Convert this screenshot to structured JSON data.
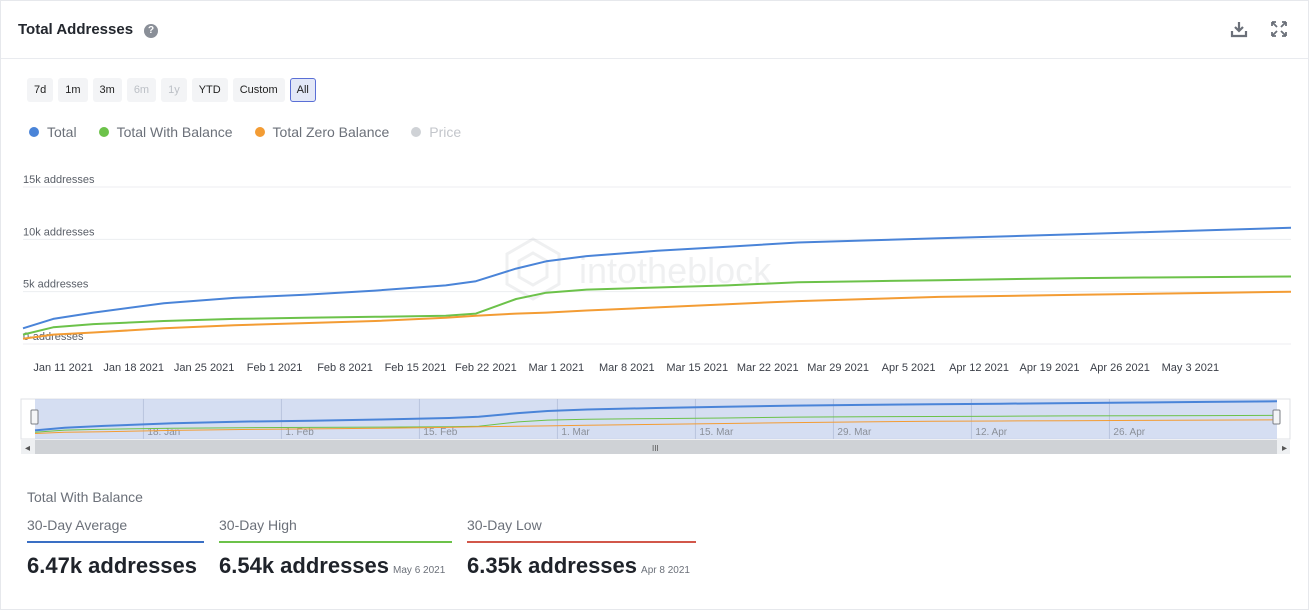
{
  "header": {
    "title": "Total Addresses",
    "help_glyph": "?",
    "download_icon": "download-icon",
    "expand_icon": "expand-icon"
  },
  "range_buttons": [
    {
      "label": "7d",
      "state": "normal"
    },
    {
      "label": "1m",
      "state": "normal"
    },
    {
      "label": "3m",
      "state": "normal"
    },
    {
      "label": "6m",
      "state": "disabled"
    },
    {
      "label": "1y",
      "state": "disabled"
    },
    {
      "label": "YTD",
      "state": "normal"
    },
    {
      "label": "Custom",
      "state": "normal"
    },
    {
      "label": "All",
      "state": "active"
    }
  ],
  "legend": [
    {
      "name": "Total",
      "color": "#4a84d8",
      "visible": true
    },
    {
      "name": "Total With Balance",
      "color": "#6cc24a",
      "visible": true
    },
    {
      "name": "Total Zero Balance",
      "color": "#f39c34",
      "visible": true
    },
    {
      "name": "Price",
      "color": "#cfd2d6",
      "visible": false
    }
  ],
  "chart_data": {
    "type": "line",
    "title": "Total Addresses",
    "x_tick_labels": [
      "Jan 11 2021",
      "Jan 18 2021",
      "Jan 25 2021",
      "Feb 1 2021",
      "Feb 8 2021",
      "Feb 15 2021",
      "Feb 22 2021",
      "Mar 1 2021",
      "Mar 8 2021",
      "Mar 15 2021",
      "Mar 22 2021",
      "Mar 29 2021",
      "Apr 5 2021",
      "Apr 12 2021",
      "Apr 19 2021",
      "Apr 26 2021",
      "May 3 2021"
    ],
    "y_tick_labels": [
      "0-addresses",
      "5k addresses",
      "10k addresses",
      "15k addresses"
    ],
    "ylim": [
      0,
      15000
    ],
    "x_range_days": [
      0,
      126
    ],
    "grid": true,
    "legend_placement": "top-left",
    "watermark": "intotheblock",
    "series": [
      {
        "name": "Total",
        "color": "#4a84d8",
        "x_days": [
          0,
          3,
          7,
          14,
          21,
          28,
          35,
          42,
          45,
          49,
          52,
          56,
          63,
          70,
          77,
          84,
          91,
          98,
          105,
          112,
          119,
          126
        ],
        "values": [
          1500,
          2400,
          3000,
          3900,
          4400,
          4700,
          5100,
          5600,
          6000,
          7200,
          7900,
          8400,
          8900,
          9300,
          9700,
          9900,
          10100,
          10300,
          10500,
          10700,
          10900,
          11100
        ]
      },
      {
        "name": "Total With Balance",
        "color": "#6cc24a",
        "x_days": [
          0,
          3,
          7,
          14,
          21,
          28,
          35,
          42,
          45,
          49,
          52,
          56,
          63,
          70,
          77,
          84,
          91,
          98,
          105,
          112,
          119,
          126
        ],
        "values": [
          900,
          1600,
          1900,
          2200,
          2400,
          2500,
          2600,
          2700,
          2900,
          4300,
          4900,
          5200,
          5400,
          5600,
          5900,
          6000,
          6100,
          6200,
          6300,
          6350,
          6400,
          6450
        ]
      },
      {
        "name": "Total Zero Balance",
        "color": "#f39c34",
        "x_days": [
          0,
          3,
          7,
          14,
          21,
          28,
          35,
          42,
          45,
          49,
          52,
          56,
          63,
          70,
          77,
          84,
          91,
          98,
          105,
          112,
          119,
          126
        ],
        "values": [
          500,
          900,
          1100,
          1500,
          1800,
          2000,
          2200,
          2500,
          2700,
          2900,
          3000,
          3200,
          3500,
          3800,
          4100,
          4300,
          4500,
          4600,
          4700,
          4800,
          4900,
          5000
        ]
      }
    ]
  },
  "navigator": {
    "tick_labels": [
      "18. Jan",
      "1. Feb",
      "15. Feb",
      "1. Mar",
      "15. Mar",
      "29. Mar",
      "12. Apr",
      "26. Apr"
    ],
    "handle_glyph": "III",
    "left_arrow": "◂",
    "right_arrow": "▸"
  },
  "stats": {
    "title": "Total With Balance",
    "items": [
      {
        "label": "30-Day Average",
        "value": "6.47k addresses",
        "date": "",
        "color": "#3a6fc4"
      },
      {
        "label": "30-Day High",
        "value": "6.54k addresses",
        "date": "May 6 2021",
        "color": "#6cc24a"
      },
      {
        "label": "30-Day Low",
        "value": "6.35k addresses",
        "date": "Apr 8 2021",
        "color": "#d2574a"
      }
    ]
  }
}
